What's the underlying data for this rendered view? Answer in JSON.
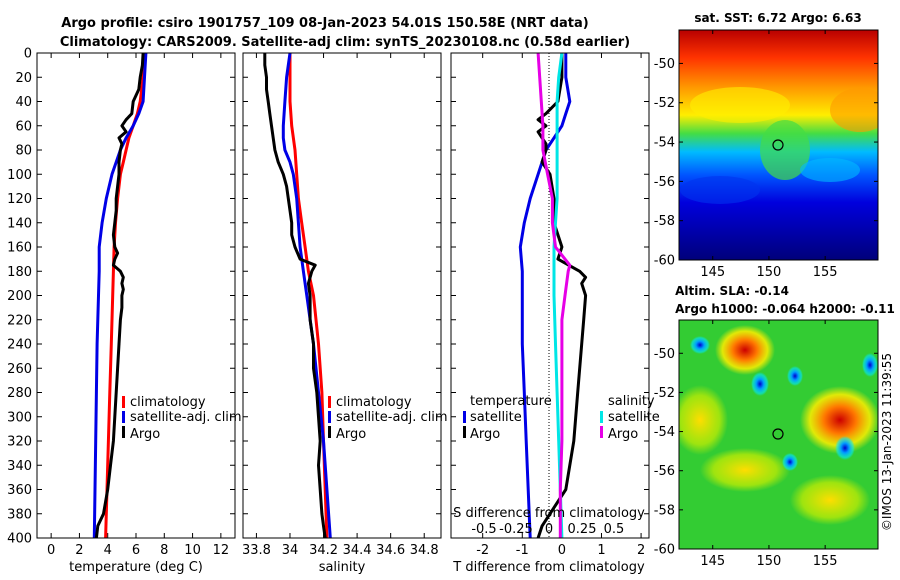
{
  "header": {
    "title_line1": "Argo profile: csiro 1901757_109 08-Jan-2023 54.01S 150.58E (NRT data)",
    "title_line2": "Climatology: CARS2009. Satellite-adj clim: synTS_20230108.nc (0.58d earlier)"
  },
  "sst_map": {
    "title": "sat. SST: 6.72 Argo: 6.63",
    "xticks": [
      "145",
      "150",
      "155"
    ],
    "yticks": [
      "-50",
      "-52",
      "-54",
      "-56",
      "-58",
      "-60"
    ]
  },
  "sla_map": {
    "title_line1": "Altim. SLA: -0.14",
    "title_line2": "Argo h1000: -0.064 h2000: -0.11",
    "xticks": [
      "145",
      "150",
      "155"
    ],
    "yticks": [
      "-50",
      "-52",
      "-54",
      "-56",
      "-58",
      "-60"
    ]
  },
  "credit": "©IMOS 13-Jan-2023 11:39:55",
  "colors": {
    "climatology": "#ff0000",
    "satellite_adj": "#0000e6",
    "argo": "#000000",
    "salinity_sat": "#00e6e6",
    "salinity_argo": "#e600e6"
  },
  "chart_data": [
    {
      "type": "line",
      "id": "temperature",
      "xlabel": "temperature (deg C)",
      "ylabel": "depth",
      "xlim": [
        -1,
        13
      ],
      "ylim": [
        0,
        400
      ],
      "xticks": [
        "0",
        "2",
        "4",
        "6",
        "8",
        "10",
        "12"
      ],
      "yticks": [
        "0",
        "20",
        "40",
        "60",
        "80",
        "100",
        "120",
        "140",
        "160",
        "180",
        "200",
        "220",
        "240",
        "260",
        "280",
        "300",
        "320",
        "340",
        "360",
        "380",
        "400"
      ],
      "legend": [
        "climatology",
        "satellite-adj. clim",
        "Argo"
      ],
      "series": [
        {
          "name": "climatology",
          "color": "#ff0000",
          "depth": [
            0,
            20,
            40,
            50,
            60,
            70,
            80,
            90,
            100,
            120,
            140,
            160,
            180,
            200,
            240,
            280,
            320,
            360,
            400
          ],
          "values": [
            6.6,
            6.5,
            6.3,
            6.1,
            5.8,
            5.5,
            5.3,
            5.1,
            4.9,
            4.7,
            4.55,
            4.45,
            4.4,
            4.35,
            4.25,
            4.15,
            4.05,
            3.95,
            3.85
          ]
        },
        {
          "name": "satellite-adj. clim",
          "color": "#0000e6",
          "depth": [
            0,
            20,
            40,
            50,
            60,
            70,
            80,
            90,
            100,
            120,
            140,
            160,
            180,
            200,
            240,
            280,
            320,
            360,
            400
          ],
          "values": [
            6.7,
            6.6,
            6.5,
            6.2,
            5.8,
            5.3,
            4.9,
            4.6,
            4.3,
            3.9,
            3.6,
            3.4,
            3.4,
            3.35,
            3.25,
            3.2,
            3.15,
            3.1,
            3.05
          ]
        },
        {
          "name": "Argo",
          "color": "#000000",
          "depth": [
            0,
            10,
            20,
            30,
            40,
            50,
            55,
            60,
            65,
            70,
            75,
            80,
            90,
            100,
            110,
            120,
            130,
            140,
            150,
            160,
            165,
            170,
            175,
            180,
            185,
            190,
            195,
            200,
            210,
            220,
            240,
            260,
            280,
            300,
            320,
            340,
            360,
            380,
            390,
            400
          ],
          "values": [
            6.5,
            6.45,
            6.3,
            6.2,
            5.8,
            5.7,
            5.3,
            5.0,
            5.3,
            4.8,
            5.0,
            4.9,
            4.8,
            4.8,
            4.7,
            4.6,
            4.6,
            4.5,
            4.4,
            4.5,
            4.7,
            4.5,
            4.4,
            4.9,
            5.1,
            5.0,
            5.1,
            5.0,
            5.0,
            4.9,
            4.8,
            4.7,
            4.6,
            4.5,
            4.4,
            4.2,
            4.0,
            3.7,
            3.3,
            3.2
          ]
        }
      ]
    },
    {
      "type": "line",
      "id": "salinity",
      "xlabel": "salinity",
      "ylabel": "",
      "xlim": [
        33.72,
        34.9
      ],
      "ylim": [
        0,
        400
      ],
      "xticks": [
        "33.8",
        "34",
        "34.2",
        "34.4",
        "34.6",
        "34.8"
      ],
      "legend": [
        "climatology",
        "satellite-adj. clim",
        "Argo"
      ],
      "series": [
        {
          "name": "climatology",
          "color": "#ff0000",
          "depth": [
            0,
            20,
            40,
            60,
            80,
            100,
            120,
            140,
            160,
            180,
            200,
            240,
            280,
            320,
            360,
            400
          ],
          "values": [
            34.0,
            34.0,
            34.0,
            34.01,
            34.03,
            34.04,
            34.05,
            34.07,
            34.09,
            34.11,
            34.14,
            34.17,
            34.19,
            34.2,
            34.21,
            34.22
          ]
        },
        {
          "name": "satellite-adj. clim",
          "color": "#0000e6",
          "depth": [
            0,
            20,
            40,
            60,
            70,
            80,
            90,
            100,
            120,
            140,
            160,
            180,
            200,
            240,
            280,
            320,
            360,
            400
          ],
          "values": [
            34.0,
            33.98,
            33.97,
            33.96,
            33.96,
            33.97,
            34.0,
            34.02,
            34.04,
            34.05,
            34.06,
            34.08,
            34.1,
            34.14,
            34.17,
            34.2,
            34.22,
            34.24
          ]
        },
        {
          "name": "Argo",
          "color": "#000000",
          "depth": [
            0,
            10,
            20,
            30,
            40,
            50,
            60,
            70,
            80,
            90,
            100,
            110,
            120,
            130,
            140,
            150,
            160,
            170,
            175,
            180,
            190,
            200,
            210,
            220,
            240,
            260,
            280,
            300,
            320,
            340,
            360,
            380,
            390,
            400
          ],
          "values": [
            33.85,
            33.85,
            33.86,
            33.86,
            33.87,
            33.88,
            33.89,
            33.9,
            33.91,
            33.93,
            33.96,
            33.98,
            33.99,
            34.0,
            34.01,
            34.01,
            34.03,
            34.06,
            34.15,
            34.13,
            34.11,
            34.12,
            34.12,
            34.12,
            34.14,
            34.14,
            34.16,
            34.17,
            34.18,
            34.17,
            34.18,
            34.19,
            34.2,
            34.21
          ]
        }
      ]
    },
    {
      "type": "line",
      "id": "difference",
      "xlabel": "T difference from climatology",
      "ylabel": "",
      "xlim": [
        -2.8,
        2.2
      ],
      "ylim": [
        0,
        400
      ],
      "xticks": [
        "-2",
        "-1",
        "0",
        "1",
        "2"
      ],
      "xticks_top_label": "S difference from climatology",
      "xticks_top": [
        "-0.5",
        "-0.25",
        "0",
        "0.25",
        "0.5"
      ],
      "legend": {
        "temperature_header": "temperature",
        "salinity_header": "salinity",
        "entries": [
          "satellite",
          "Argo",
          "satellite",
          "Argo"
        ]
      },
      "series": [
        {
          "name": "temperature satellite",
          "color": "#0000e6",
          "depth": [
            0,
            20,
            40,
            50,
            60,
            70,
            80,
            90,
            100,
            120,
            140,
            160,
            180,
            200,
            240,
            280,
            320,
            360,
            400
          ],
          "values": [
            0.1,
            0.1,
            0.2,
            0.1,
            0.0,
            -0.2,
            -0.4,
            -0.5,
            -0.6,
            -0.8,
            -0.95,
            -1.05,
            -1.0,
            -1.0,
            -1.0,
            -0.95,
            -0.9,
            -0.85,
            -0.8
          ]
        },
        {
          "name": "temperature Argo",
          "color": "#000000",
          "depth": [
            0,
            20,
            40,
            50,
            55,
            60,
            65,
            70,
            75,
            80,
            90,
            100,
            120,
            140,
            160,
            170,
            180,
            185,
            190,
            200,
            220,
            240,
            280,
            320,
            360,
            390,
            400
          ],
          "values": [
            0.0,
            0.0,
            -0.1,
            -0.4,
            -0.6,
            -0.4,
            -0.6,
            -0.5,
            -0.4,
            -0.4,
            -0.5,
            -0.3,
            -0.2,
            -0.2,
            0.0,
            -0.1,
            0.45,
            0.6,
            0.5,
            0.6,
            0.55,
            0.5,
            0.4,
            0.3,
            0.1,
            -0.5,
            -0.6
          ]
        },
        {
          "name": "salinity satellite",
          "color": "#00e6e6",
          "depth": [
            0,
            20,
            40,
            60,
            80,
            100,
            120,
            140,
            160,
            180,
            200,
            240,
            280,
            320,
            360,
            400
          ],
          "values": [
            0.0,
            -0.02,
            -0.03,
            -0.03,
            -0.03,
            -0.03,
            -0.03,
            -0.04,
            -0.05,
            -0.05,
            -0.05,
            -0.04,
            -0.03,
            -0.02,
            -0.01,
            0.0
          ]
        },
        {
          "name": "salinity Argo",
          "color": "#e600e6",
          "depth": [
            0,
            20,
            40,
            60,
            80,
            100,
            120,
            140,
            160,
            175,
            180,
            200,
            220,
            240,
            280,
            320,
            360,
            400
          ],
          "values": [
            -0.15,
            -0.14,
            -0.13,
            -0.12,
            -0.12,
            -0.09,
            -0.06,
            -0.06,
            -0.04,
            0.05,
            0.04,
            0.02,
            0.0,
            0.0,
            0.0,
            0.0,
            -0.01,
            -0.01
          ]
        }
      ]
    }
  ]
}
